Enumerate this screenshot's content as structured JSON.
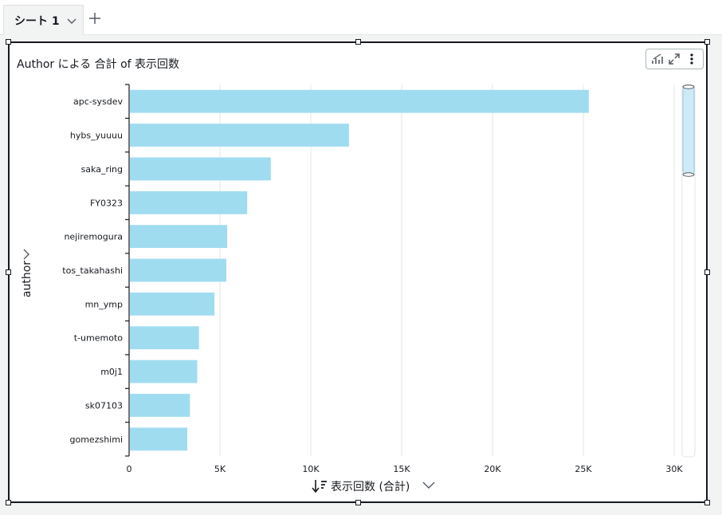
{
  "tab": {
    "label": "シート 1"
  },
  "visual": {
    "title": "Author による 合計 of 表示回数",
    "y_field": "author",
    "x_field": "表示回数 (合計)"
  },
  "colors": {
    "bar": "#a0dcf0",
    "axis": "#16191f",
    "grid": "#e1e4e8",
    "scroll_thumb": "#cfeaf7"
  },
  "chart_data": {
    "type": "bar",
    "orientation": "horizontal",
    "title": "Author による 合計 of 表示回数",
    "xlabel": "表示回数 (合計)",
    "ylabel": "author",
    "xlim": [
      0,
      30000
    ],
    "x_ticks": [
      0,
      5000,
      10000,
      15000,
      20000,
      25000,
      30000
    ],
    "x_tick_labels": [
      "0",
      "5K",
      "10K",
      "15K",
      "20K",
      "25K",
      "30K"
    ],
    "grid": true,
    "categories": [
      "apc-sysdev",
      "hybs_yuuuu",
      "saka_ring",
      "FY0323",
      "nejiremogura",
      "tos_takahashi",
      "mn_ymp",
      "t-umemoto",
      "m0j1",
      "sk07103",
      "gomezshimi"
    ],
    "values": [
      25300,
      12100,
      7800,
      6500,
      5400,
      5350,
      4700,
      3850,
      3750,
      3350,
      3200
    ]
  }
}
